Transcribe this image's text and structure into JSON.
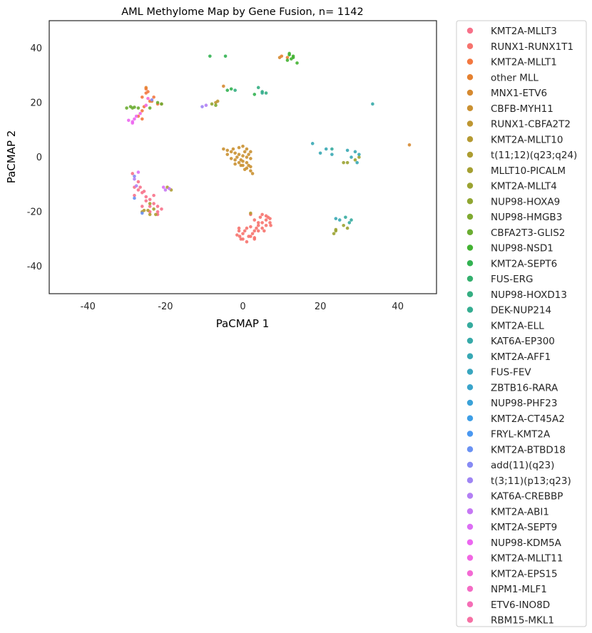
{
  "chart_data": {
    "type": "scatter",
    "title": "AML Methylome Map by Gene Fusion, n= 1142",
    "xlabel": "PaCMAP 1",
    "ylabel": "PaCMAP 2",
    "xlim": [
      -50,
      50
    ],
    "ylim": [
      -50,
      50
    ],
    "xticks": [
      -40,
      -20,
      0,
      20,
      40
    ],
    "yticks": [
      -40,
      -20,
      0,
      20,
      40
    ],
    "grid": false,
    "legend_position": "outside-right",
    "series": [
      {
        "name": "KMT2A-MLLT3",
        "color": "#f77189",
        "points": [
          [
            -28.5,
            -6
          ],
          [
            -27,
            -9
          ],
          [
            -26.5,
            -11
          ],
          [
            -25.5,
            -12.5
          ],
          [
            -25,
            -14.5
          ],
          [
            -24,
            -15.5
          ],
          [
            -23,
            -17
          ],
          [
            -22,
            -18
          ],
          [
            -21,
            -19
          ],
          [
            -22,
            -21
          ],
          [
            -24,
            -20
          ],
          [
            -26,
            -18
          ],
          [
            -28,
            -14
          ],
          [
            -27,
            -12
          ],
          [
            -25,
            -16
          ],
          [
            -26,
            -13
          ],
          [
            -23,
            -14
          ],
          [
            -22,
            -20
          ],
          [
            -28,
            -11
          ],
          [
            -24,
            -18
          ]
        ]
      },
      {
        "name": "RUNX1-RUNX1T1",
        "color": "#f6736e",
        "points": [
          [
            -1,
            -27
          ],
          [
            0,
            -28
          ],
          [
            1,
            -26
          ],
          [
            2,
            -29
          ],
          [
            3,
            -27
          ],
          [
            4,
            -25
          ],
          [
            5,
            -24
          ],
          [
            6,
            -23
          ],
          [
            6.5,
            -22
          ],
          [
            7,
            -24
          ],
          [
            3,
            -30
          ],
          [
            1,
            -31
          ],
          [
            -0.5,
            -30
          ],
          [
            -1.5,
            -28.5
          ],
          [
            2,
            -25.5
          ],
          [
            4,
            -27
          ],
          [
            5,
            -26
          ],
          [
            3,
            -23
          ],
          [
            6,
            -25
          ],
          [
            7,
            -22.5
          ],
          [
            1.5,
            -29
          ],
          [
            0.5,
            -27
          ],
          [
            -1,
            -26
          ],
          [
            4.5,
            -22
          ],
          [
            2.5,
            -28
          ],
          [
            5.5,
            -27
          ],
          [
            3.5,
            -26
          ],
          [
            0,
            -30
          ],
          [
            6,
            -21.5
          ],
          [
            2,
            -21
          ],
          [
            5,
            -21
          ],
          [
            4,
            -24
          ],
          [
            7.2,
            -25
          ],
          [
            -0.8,
            -29
          ],
          [
            3,
            -29.5
          ]
        ]
      },
      {
        "name": "KMT2A-MLLT1",
        "color": "#f37840",
        "points": [
          [
            -25,
            25
          ],
          [
            -24.5,
            24
          ],
          [
            -26,
            22
          ],
          [
            -23,
            22
          ],
          [
            -22,
            19.5
          ],
          [
            -25.5,
            18.5
          ],
          [
            -27,
            15
          ],
          [
            -26,
            14
          ],
          [
            -21,
            19.5
          ],
          [
            -24,
            20.5
          ],
          [
            -26,
            17
          ],
          [
            -25,
            23.5
          ]
        ]
      },
      {
        "name": "other MLL",
        "color": "#e58130",
        "points": [
          [
            10,
            37
          ],
          [
            11.5,
            36.5
          ],
          [
            -25,
            25.5
          ],
          [
            -23.5,
            20.5
          ]
        ]
      },
      {
        "name": "MNX1-ETV6",
        "color": "#d68a31",
        "points": [
          [
            43,
            4.5
          ],
          [
            9.5,
            36.5
          ],
          [
            -5,
            26
          ]
        ]
      },
      {
        "name": "CBFB-MYH11",
        "color": "#ca9132",
        "points": [
          [
            -5,
            3
          ],
          [
            -4,
            2.5
          ],
          [
            -3,
            2
          ],
          [
            -2,
            1.5
          ],
          [
            -1,
            1
          ],
          [
            0,
            0.5
          ],
          [
            1,
            0
          ],
          [
            2,
            -0.5
          ],
          [
            -2,
            -1
          ],
          [
            -1,
            -2
          ],
          [
            0,
            -3
          ],
          [
            1,
            -4
          ],
          [
            2,
            -5
          ],
          [
            2.5,
            -6
          ],
          [
            -1.5,
            0
          ],
          [
            -0.5,
            -1
          ],
          [
            0.5,
            2
          ],
          [
            1.5,
            1
          ],
          [
            -1,
            3.5
          ],
          [
            0,
            4
          ],
          [
            1,
            3
          ],
          [
            2,
            2
          ],
          [
            -3,
            -0.5
          ],
          [
            -2,
            -2.5
          ],
          [
            0,
            -1.5
          ],
          [
            1,
            -2
          ],
          [
            1.5,
            -3
          ],
          [
            -0.5,
            -3
          ],
          [
            0.5,
            -4.5
          ],
          [
            2,
            -3.5
          ],
          [
            -4,
            1
          ],
          [
            -2.5,
            3
          ]
        ]
      },
      {
        "name": "RUNX1-CBFA2T2",
        "color": "#be9632",
        "points": [
          [
            -7,
            20
          ],
          [
            -6.5,
            20.5
          ]
        ]
      },
      {
        "name": "KMT2A-MLLT10",
        "color": "#b59a32",
        "points": [
          [
            2,
            -20.5
          ],
          [
            -24,
            -21
          ],
          [
            -25.5,
            -19.5
          ],
          [
            -26,
            -20
          ],
          [
            -24.5,
            -19.5
          ]
        ]
      },
      {
        "name": "t(11;12)(q23;q24)",
        "color": "#ad9d32",
        "points": [
          [
            -22.5,
            -21
          ],
          [
            -19.5,
            -11
          ],
          [
            -18.5,
            -12
          ]
        ]
      },
      {
        "name": "MLLT10-PICALM",
        "color": "#a5a032",
        "points": [
          [
            -23,
            -19
          ],
          [
            -24,
            -17
          ]
        ]
      },
      {
        "name": "KMT2A-MLLT4",
        "color": "#9ba332",
        "points": [
          [
            24,
            -27
          ],
          [
            23.5,
            -28
          ],
          [
            26,
            -25
          ],
          [
            27,
            -26
          ],
          [
            24,
            -26.5
          ],
          [
            30,
            0
          ],
          [
            29,
            -1
          ],
          [
            27,
            -2
          ],
          [
            26,
            -2
          ]
        ]
      },
      {
        "name": "NUP98-HOXA9",
        "color": "#90a632",
        "points": [
          [
            -8,
            19.5
          ]
        ]
      },
      {
        "name": "NUP98-HMGB3",
        "color": "#80aa32",
        "points": [
          [
            -7,
            19
          ]
        ]
      },
      {
        "name": "CBFA2T3-GLIS2",
        "color": "#6bad32",
        "points": [
          [
            -30,
            18
          ],
          [
            -29,
            18.5
          ],
          [
            -28.5,
            18
          ],
          [
            -28,
            18.3
          ],
          [
            -27,
            18
          ],
          [
            -22,
            20
          ],
          [
            -21,
            19.5
          ],
          [
            -24,
            18
          ]
        ]
      },
      {
        "name": "NUP98-NSD1",
        "color": "#43b232",
        "points": [
          [
            12,
            37.5
          ],
          [
            13,
            37
          ],
          [
            12.5,
            36
          ],
          [
            11.5,
            35.5
          ],
          [
            14,
            34.5
          ],
          [
            13,
            36.5
          ],
          [
            12,
            38
          ]
        ]
      },
      {
        "name": "KMT2A-SEPT6",
        "color": "#33b252",
        "points": [
          [
            -8.5,
            37
          ],
          [
            -4.5,
            37
          ],
          [
            3,
            23
          ],
          [
            -3,
            25
          ],
          [
            -4,
            24.5
          ]
        ]
      },
      {
        "name": "FUS-ERG",
        "color": "#34b06e",
        "points": []
      },
      {
        "name": "NUP98-HOXD13",
        "color": "#35ae82",
        "points": [
          [
            4,
            25.5
          ],
          [
            5,
            24
          ],
          [
            6,
            23.5
          ],
          [
            -2,
            24.5
          ]
        ]
      },
      {
        "name": "DEK-NUP214",
        "color": "#35ad91",
        "points": [
          [
            5,
            23.5
          ]
        ]
      },
      {
        "name": "KMT2A-ELL",
        "color": "#36ab9e",
        "points": [
          [
            28,
            -23
          ],
          [
            27.5,
            -24
          ],
          [
            26.5,
            -22
          ],
          [
            23,
            3
          ]
        ]
      },
      {
        "name": "KAT6A-EP300",
        "color": "#37aaa9",
        "points": [
          [
            33.5,
            19.5
          ]
        ]
      },
      {
        "name": "KMT2A-AFF1",
        "color": "#38a8b4",
        "points": [
          [
            18,
            5
          ],
          [
            20,
            1.5
          ],
          [
            21.5,
            3
          ],
          [
            23,
            1
          ],
          [
            24,
            -22.5
          ],
          [
            25,
            -23
          ],
          [
            27,
            2.5
          ],
          [
            29,
            2
          ],
          [
            28,
            0
          ],
          [
            29.5,
            -2
          ],
          [
            30,
            1
          ]
        ]
      },
      {
        "name": "FUS-FEV",
        "color": "#39a6bf",
        "points": []
      },
      {
        "name": "ZBTB16-RARA",
        "color": "#3aa4cb",
        "points": []
      },
      {
        "name": "NUP98-PHF23",
        "color": "#3ba2d8",
        "points": []
      },
      {
        "name": "KMT2A-CT45A2",
        "color": "#3e9ee6",
        "points": []
      },
      {
        "name": "FRYL-KMT2A",
        "color": "#4a98f1",
        "points": []
      },
      {
        "name": "KMT2A-BTBD18",
        "color": "#6a92f3",
        "points": [
          [
            -28,
            -15
          ],
          [
            -26,
            -20.5
          ]
        ]
      },
      {
        "name": "add(11)(q23)",
        "color": "#878bf4",
        "points": [
          [
            -23.5,
            21
          ],
          [
            -28,
            -7
          ]
        ]
      },
      {
        "name": "t(3;11)(p13;q23)",
        "color": "#9f85f4",
        "points": [
          [
            -10.5,
            18.5
          ]
        ]
      },
      {
        "name": "KAT6A-CREBBP",
        "color": "#b37ff4",
        "points": [
          [
            -9.5,
            19
          ],
          [
            -28,
            -8
          ],
          [
            -27.5,
            -10.5
          ]
        ]
      },
      {
        "name": "KMT2A-ABI1",
        "color": "#c678f4",
        "points": [
          [
            -19,
            -11.5
          ],
          [
            -20,
            -12
          ]
        ]
      },
      {
        "name": "KMT2A-SEPT9",
        "color": "#dc6ff4",
        "points": [
          [
            -27,
            -5.5
          ],
          [
            -20.5,
            -11
          ]
        ]
      },
      {
        "name": "NUP98-KDM5A",
        "color": "#ec67f0",
        "points": [
          [
            -29.5,
            13.5
          ],
          [
            -28.5,
            13
          ],
          [
            -28,
            14
          ],
          [
            -27.5,
            15
          ],
          [
            -28.5,
            12.5
          ]
        ]
      },
      {
        "name": "KMT2A-MLLT11",
        "color": "#f167e3",
        "points": [
          [
            -26.5,
            16
          ],
          [
            -25,
            19
          ]
        ]
      },
      {
        "name": "KMT2A-EPS15",
        "color": "#f36ad4",
        "points": [
          [
            -24.5,
            21.5
          ]
        ]
      },
      {
        "name": "NPM1-MLF1",
        "color": "#f46cc5",
        "points": []
      },
      {
        "name": "ETV6-INO8D",
        "color": "#f56eb6",
        "points": []
      },
      {
        "name": "RBM15-MKL1",
        "color": "#f670a4",
        "points": []
      }
    ]
  }
}
